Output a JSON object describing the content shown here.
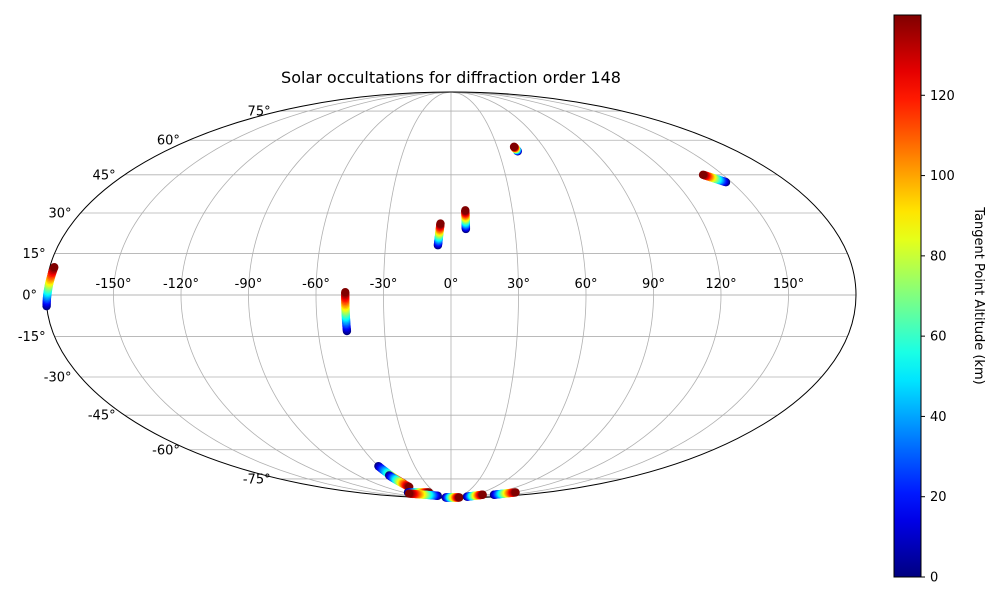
{
  "chart_data": {
    "type": "scatter",
    "projection": "mollweide",
    "title": "Solar occultations for diffraction order 148",
    "xlabel": "",
    "ylabel": "",
    "xlim": [
      -180,
      180
    ],
    "ylim": [
      -90,
      90
    ],
    "grid": true,
    "x_ticks": [
      -150,
      -120,
      -90,
      -60,
      -30,
      0,
      30,
      60,
      90,
      120,
      150
    ],
    "x_tick_labels": [
      "-150°",
      "-120°",
      "-90°",
      "-60°",
      "-30°",
      "0°",
      "30°",
      "60°",
      "90°",
      "120°",
      "150°"
    ],
    "y_ticks": [
      -75,
      -60,
      -45,
      -30,
      -15,
      0,
      15,
      30,
      45,
      60,
      75
    ],
    "y_tick_labels": [
      "-75°",
      "-60°",
      "-45°",
      "-30°",
      "-15°",
      "0°",
      "15°",
      "30°",
      "45°",
      "60°",
      "75°"
    ],
    "colorbar": {
      "label": "Tangent Point Altitude (km)",
      "colormap": "jet",
      "range": [
        0,
        140
      ],
      "ticks": [
        0,
        20,
        40,
        60,
        80,
        100,
        120
      ],
      "tick_labels": [
        "0",
        "20",
        "40",
        "60",
        "80",
        "100",
        "120"
      ]
    },
    "tracks": [
      {
        "start": [
          -180,
          -4
        ],
        "end": [
          -178,
          10
        ],
        "alt_start": 0,
        "alt_end": 140
      },
      {
        "start": [
          -47,
          -13
        ],
        "end": [
          -47,
          1
        ],
        "alt_start": 0,
        "alt_end": 140
      },
      {
        "start": [
          -6,
          18
        ],
        "end": [
          -5,
          26
        ],
        "alt_start": 0,
        "alt_end": 140
      },
      {
        "start": [
          7,
          24
        ],
        "end": [
          7,
          31
        ],
        "alt_start": 0,
        "alt_end": 140
      },
      {
        "start": [
          42,
          55
        ],
        "end": [
          41,
          57
        ],
        "alt_start": 0,
        "alt_end": 140
      },
      {
        "start": [
          147,
          42
        ],
        "end": [
          139,
          45
        ],
        "alt_start": 0,
        "alt_end": 140
      },
      {
        "start": [
          -60,
          -68
        ],
        "end": [
          -57,
          -78
        ],
        "alt_start": 0,
        "alt_end": 140
      },
      {
        "start": [
          -60,
          -73
        ],
        "end": [
          -57,
          -80
        ],
        "alt_start": 0,
        "alt_end": 140
      },
      {
        "start": [
          -82,
          -84
        ],
        "end": [
          -42,
          -84
        ],
        "alt_start": 0,
        "alt_end": 140
      },
      {
        "start": [
          -40,
          -87
        ],
        "end": [
          -90,
          -85
        ],
        "alt_start": 0,
        "alt_end": 140
      },
      {
        "start": [
          -33,
          -89
        ],
        "end": [
          52,
          -89
        ],
        "alt_start": 0,
        "alt_end": 140
      },
      {
        "start": [
          63,
          -88
        ],
        "end": [
          79,
          -86
        ],
        "alt_start": 0,
        "alt_end": 140
      },
      {
        "start": [
          107,
          -86
        ],
        "end": [
          123,
          -84
        ],
        "alt_start": 0,
        "alt_end": 140
      }
    ]
  }
}
